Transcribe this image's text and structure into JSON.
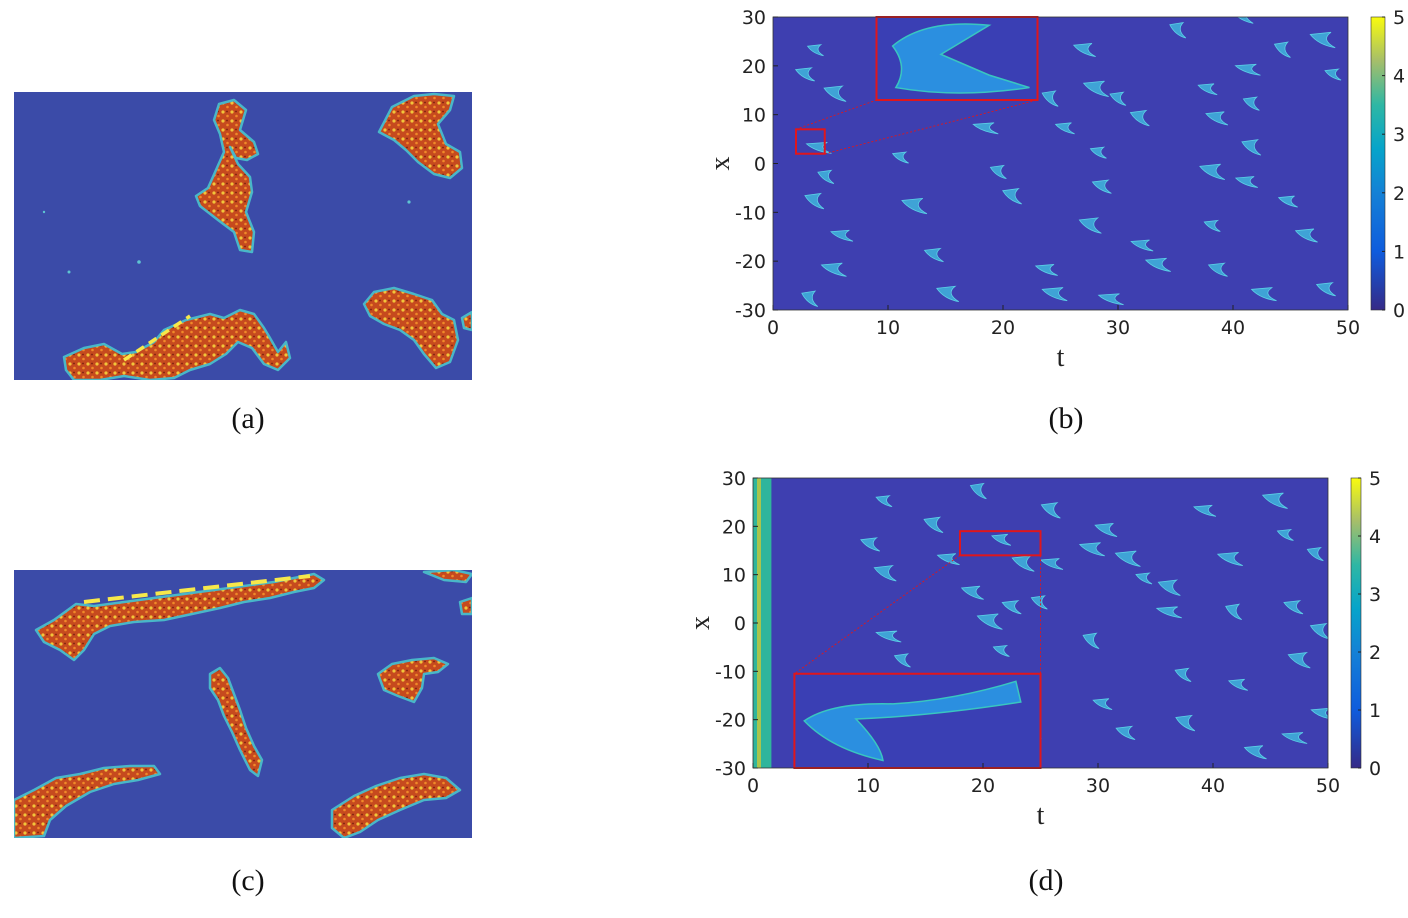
{
  "panels": {
    "a": {
      "caption": "(a)"
    },
    "b": {
      "caption": "(b)"
    },
    "c": {
      "caption": "(c)"
    },
    "d": {
      "caption": "(d)"
    }
  },
  "colors": {
    "background_blue": "#3b4ba8",
    "pattern_red": "#c64a1e",
    "pattern_yellow": "#f2c53a",
    "plot_background": "#3e3fb0",
    "pattern_cyan": "#3fa3d6",
    "inset_border": "#e0161c",
    "dashed_line": "#f7e84a"
  },
  "chart_data": [
    {
      "panel": "b",
      "type": "heatmap",
      "xlabel": "t",
      "ylabel": "x",
      "xlim": [
        0,
        50
      ],
      "ylim": [
        -30,
        30
      ],
      "xticks": [
        "0",
        "10",
        "20",
        "30",
        "40",
        "50"
      ],
      "yticks": [
        "30",
        "20",
        "10",
        "0",
        "-10",
        "-20",
        "-30"
      ],
      "colorbar": {
        "range": [
          0,
          5
        ],
        "ticks": [
          "5",
          "4",
          "3",
          "2",
          "1",
          "0"
        ]
      },
      "colormap": "parula",
      "inset": {
        "zoom_region": {
          "t": [
            2,
            4.5
          ],
          "x": [
            2,
            7
          ]
        },
        "inset_extent": {
          "t": [
            9,
            23
          ],
          "x": [
            13,
            30
          ]
        }
      },
      "features": [
        {
          "t": 3.7,
          "x": 23
        },
        {
          "t": 2.8,
          "x": 18
        },
        {
          "t": 5.4,
          "x": 14
        },
        {
          "t": 4.0,
          "x": 3
        },
        {
          "t": 4.6,
          "x": -3
        },
        {
          "t": 3.6,
          "x": -8
        },
        {
          "t": 6.0,
          "x": -15
        },
        {
          "t": 5.3,
          "x": -22
        },
        {
          "t": 3.2,
          "x": -28
        },
        {
          "t": 9.8,
          "x": 28
        },
        {
          "t": 10.6,
          "x": 21
        },
        {
          "t": 12.3,
          "x": -9
        },
        {
          "t": 11.1,
          "x": 1
        },
        {
          "t": 14.0,
          "x": -19
        },
        {
          "t": 15.2,
          "x": -27
        },
        {
          "t": 18.5,
          "x": 7
        },
        {
          "t": 19.6,
          "x": -2
        },
        {
          "t": 20.8,
          "x": -7
        },
        {
          "t": 23.8,
          "x": -22
        },
        {
          "t": 24.5,
          "x": -27
        },
        {
          "t": 24.1,
          "x": 13
        },
        {
          "t": 25.4,
          "x": 7
        },
        {
          "t": 27.1,
          "x": 23
        },
        {
          "t": 28.1,
          "x": 15
        },
        {
          "t": 28.3,
          "x": 2
        },
        {
          "t": 28.6,
          "x": -5
        },
        {
          "t": 27.6,
          "x": -13
        },
        {
          "t": 29.4,
          "x": -28
        },
        {
          "t": 30.0,
          "x": 13
        },
        {
          "t": 31.9,
          "x": 9
        },
        {
          "t": 32.1,
          "x": -17
        },
        {
          "t": 33.5,
          "x": -21
        },
        {
          "t": 35.2,
          "x": 27
        },
        {
          "t": 37.8,
          "x": 15
        },
        {
          "t": 38.6,
          "x": 9
        },
        {
          "t": 38.2,
          "x": -2
        },
        {
          "t": 38.2,
          "x": -13
        },
        {
          "t": 38.7,
          "x": -22
        },
        {
          "t": 40.8,
          "x": 30
        },
        {
          "t": 41.3,
          "x": 19
        },
        {
          "t": 41.6,
          "x": 12
        },
        {
          "t": 41.6,
          "x": 3
        },
        {
          "t": 41.2,
          "x": -4
        },
        {
          "t": 42.7,
          "x": -27
        },
        {
          "t": 44.3,
          "x": 23
        },
        {
          "t": 44.8,
          "x": -8
        },
        {
          "t": 46.4,
          "x": -15
        },
        {
          "t": 47.8,
          "x": 25
        },
        {
          "t": 48.7,
          "x": 18
        },
        {
          "t": 48.1,
          "x": -26
        }
      ]
    },
    {
      "panel": "d",
      "type": "heatmap",
      "xlabel": "t",
      "ylabel": "x",
      "xlim": [
        0,
        50
      ],
      "ylim": [
        -30,
        30
      ],
      "xticks": [
        "0",
        "10",
        "20",
        "30",
        "40",
        "50"
      ],
      "yticks": [
        "30",
        "20",
        "10",
        "0",
        "-10",
        "-20",
        "-30"
      ],
      "colorbar": {
        "range": [
          0,
          5
        ],
        "ticks": [
          "5",
          "4",
          "3",
          "2",
          "1",
          "0"
        ]
      },
      "colormap": "parula",
      "inset": {
        "zoom_region": {
          "t": [
            18,
            25
          ],
          "x": [
            14,
            19
          ]
        },
        "inset_extent": {
          "t": [
            3.6,
            25
          ],
          "x": [
            -30,
            -10.5
          ]
        }
      },
      "boundary_band": {
        "t": [
          0,
          1.6
        ],
        "x": [
          -30,
          30
        ]
      },
      "features": [
        {
          "t": 11.4,
          "x": 25
        },
        {
          "t": 10.2,
          "x": 16
        },
        {
          "t": 11.5,
          "x": 10
        },
        {
          "t": 11.8,
          "x": -3
        },
        {
          "t": 13.0,
          "x": -8
        },
        {
          "t": 15.7,
          "x": 20
        },
        {
          "t": 17.0,
          "x": 13
        },
        {
          "t": 18.5,
          "x": -21
        },
        {
          "t": 19.6,
          "x": 27
        },
        {
          "t": 21.6,
          "x": 17
        },
        {
          "t": 19.1,
          "x": 6
        },
        {
          "t": 20.6,
          "x": 0
        },
        {
          "t": 21.6,
          "x": -6
        },
        {
          "t": 22.5,
          "x": 3
        },
        {
          "t": 23.5,
          "x": 12
        },
        {
          "t": 24.0,
          "x": -23
        },
        {
          "t": 24.9,
          "x": 4
        },
        {
          "t": 25.9,
          "x": 23
        },
        {
          "t": 26.0,
          "x": 12
        },
        {
          "t": 29.5,
          "x": 15
        },
        {
          "t": 29.4,
          "x": -4
        },
        {
          "t": 30.4,
          "x": -17
        },
        {
          "t": 30.7,
          "x": 19
        },
        {
          "t": 32.6,
          "x": 13
        },
        {
          "t": 34.0,
          "x": 9
        },
        {
          "t": 32.4,
          "x": -23
        },
        {
          "t": 36.2,
          "x": 7
        },
        {
          "t": 36.2,
          "x": 2
        },
        {
          "t": 37.4,
          "x": -11
        },
        {
          "t": 37.6,
          "x": -21
        },
        {
          "t": 39.3,
          "x": 23
        },
        {
          "t": 41.5,
          "x": 13
        },
        {
          "t": 41.8,
          "x": 2
        },
        {
          "t": 42.2,
          "x": -13
        },
        {
          "t": 43.7,
          "x": -27
        },
        {
          "t": 45.4,
          "x": 25
        },
        {
          "t": 46.3,
          "x": 18
        },
        {
          "t": 47.0,
          "x": 3
        },
        {
          "t": 47.5,
          "x": -8
        },
        {
          "t": 47.1,
          "x": -24
        },
        {
          "t": 48.9,
          "x": 14
        },
        {
          "t": 49.3,
          "x": -2
        },
        {
          "t": 49.5,
          "x": -19
        }
      ]
    }
  ]
}
